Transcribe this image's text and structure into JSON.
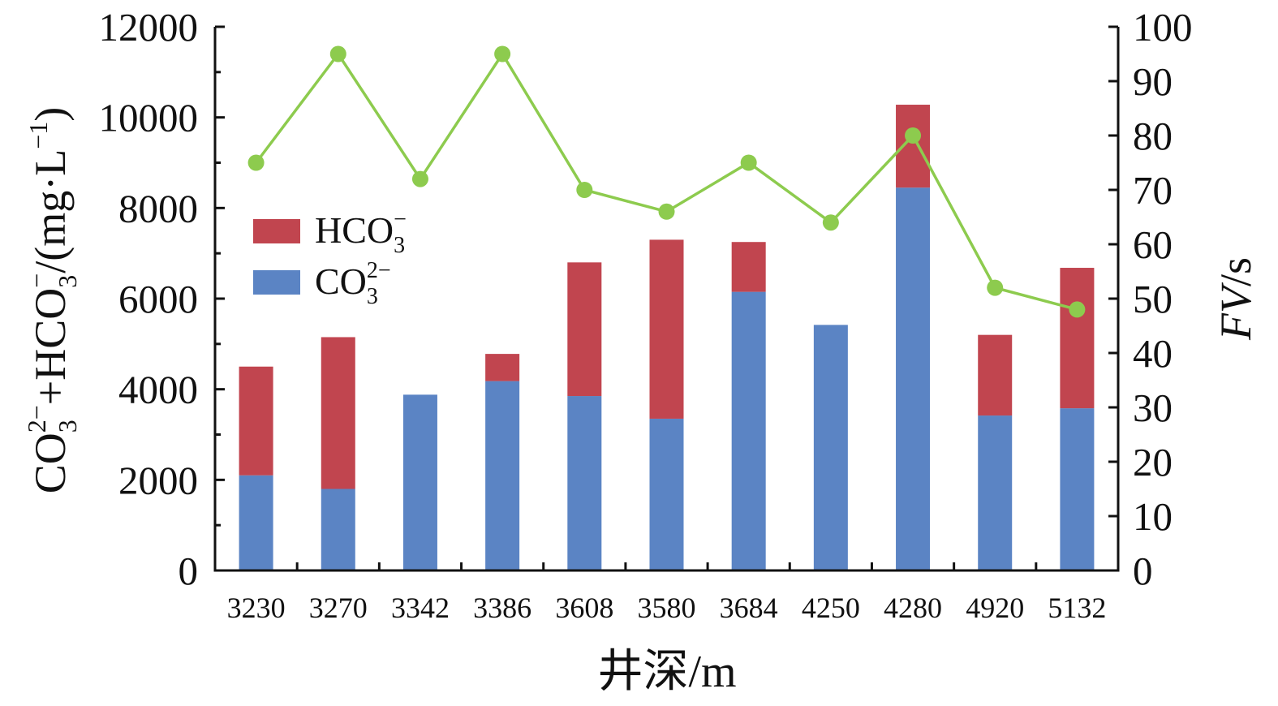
{
  "chart_data": {
    "type": "bar",
    "stacked": true,
    "categories": [
      "3230",
      "3270",
      "3342",
      "3386",
      "3608",
      "3580",
      "3684",
      "4250",
      "4280",
      "4920",
      "5132"
    ],
    "series": [
      {
        "name": "CO",
        "sub": "3",
        "sup": "2−",
        "axis": "left",
        "kind": "bar",
        "color": "#5B84C4",
        "values": [
          2100,
          1800,
          3880,
          4180,
          3850,
          3350,
          6150,
          5420,
          8450,
          3420,
          3580
        ]
      },
      {
        "name": "HCO",
        "sub": "3",
        "sup": "−",
        "axis": "left",
        "kind": "bar",
        "color": "#C1454F",
        "values": [
          2400,
          3350,
          0,
          600,
          2950,
          3950,
          1100,
          0,
          1830,
          1780,
          3100
        ]
      },
      {
        "name": "FV",
        "axis": "right",
        "kind": "line",
        "color": "#8DCB4E",
        "values": [
          75,
          95,
          72,
          95,
          70,
          66,
          75,
          64,
          80,
          52,
          48
        ]
      }
    ],
    "xlabel": "井深/m",
    "ylabel": {
      "parts": [
        "CO",
        "3",
        "2−",
        "+HCO",
        "3",
        "−",
        "/(mg·L",
        "−1",
        ")"
      ]
    },
    "y2label": {
      "italic": "FV",
      "rest": "/s"
    },
    "ylim": [
      0,
      12000
    ],
    "yticks": [
      "0",
      "2000",
      "4000",
      "6000",
      "8000",
      "10000",
      "12000"
    ],
    "y2lim": [
      0,
      100
    ],
    "y2ticks": [
      "0",
      "10",
      "20",
      "30",
      "40",
      "50",
      "60",
      "70",
      "80",
      "90",
      "100"
    ],
    "legend": {
      "position": "upper-left",
      "entries": [
        "HCO3−",
        "CO32−"
      ]
    },
    "grid": false
  }
}
